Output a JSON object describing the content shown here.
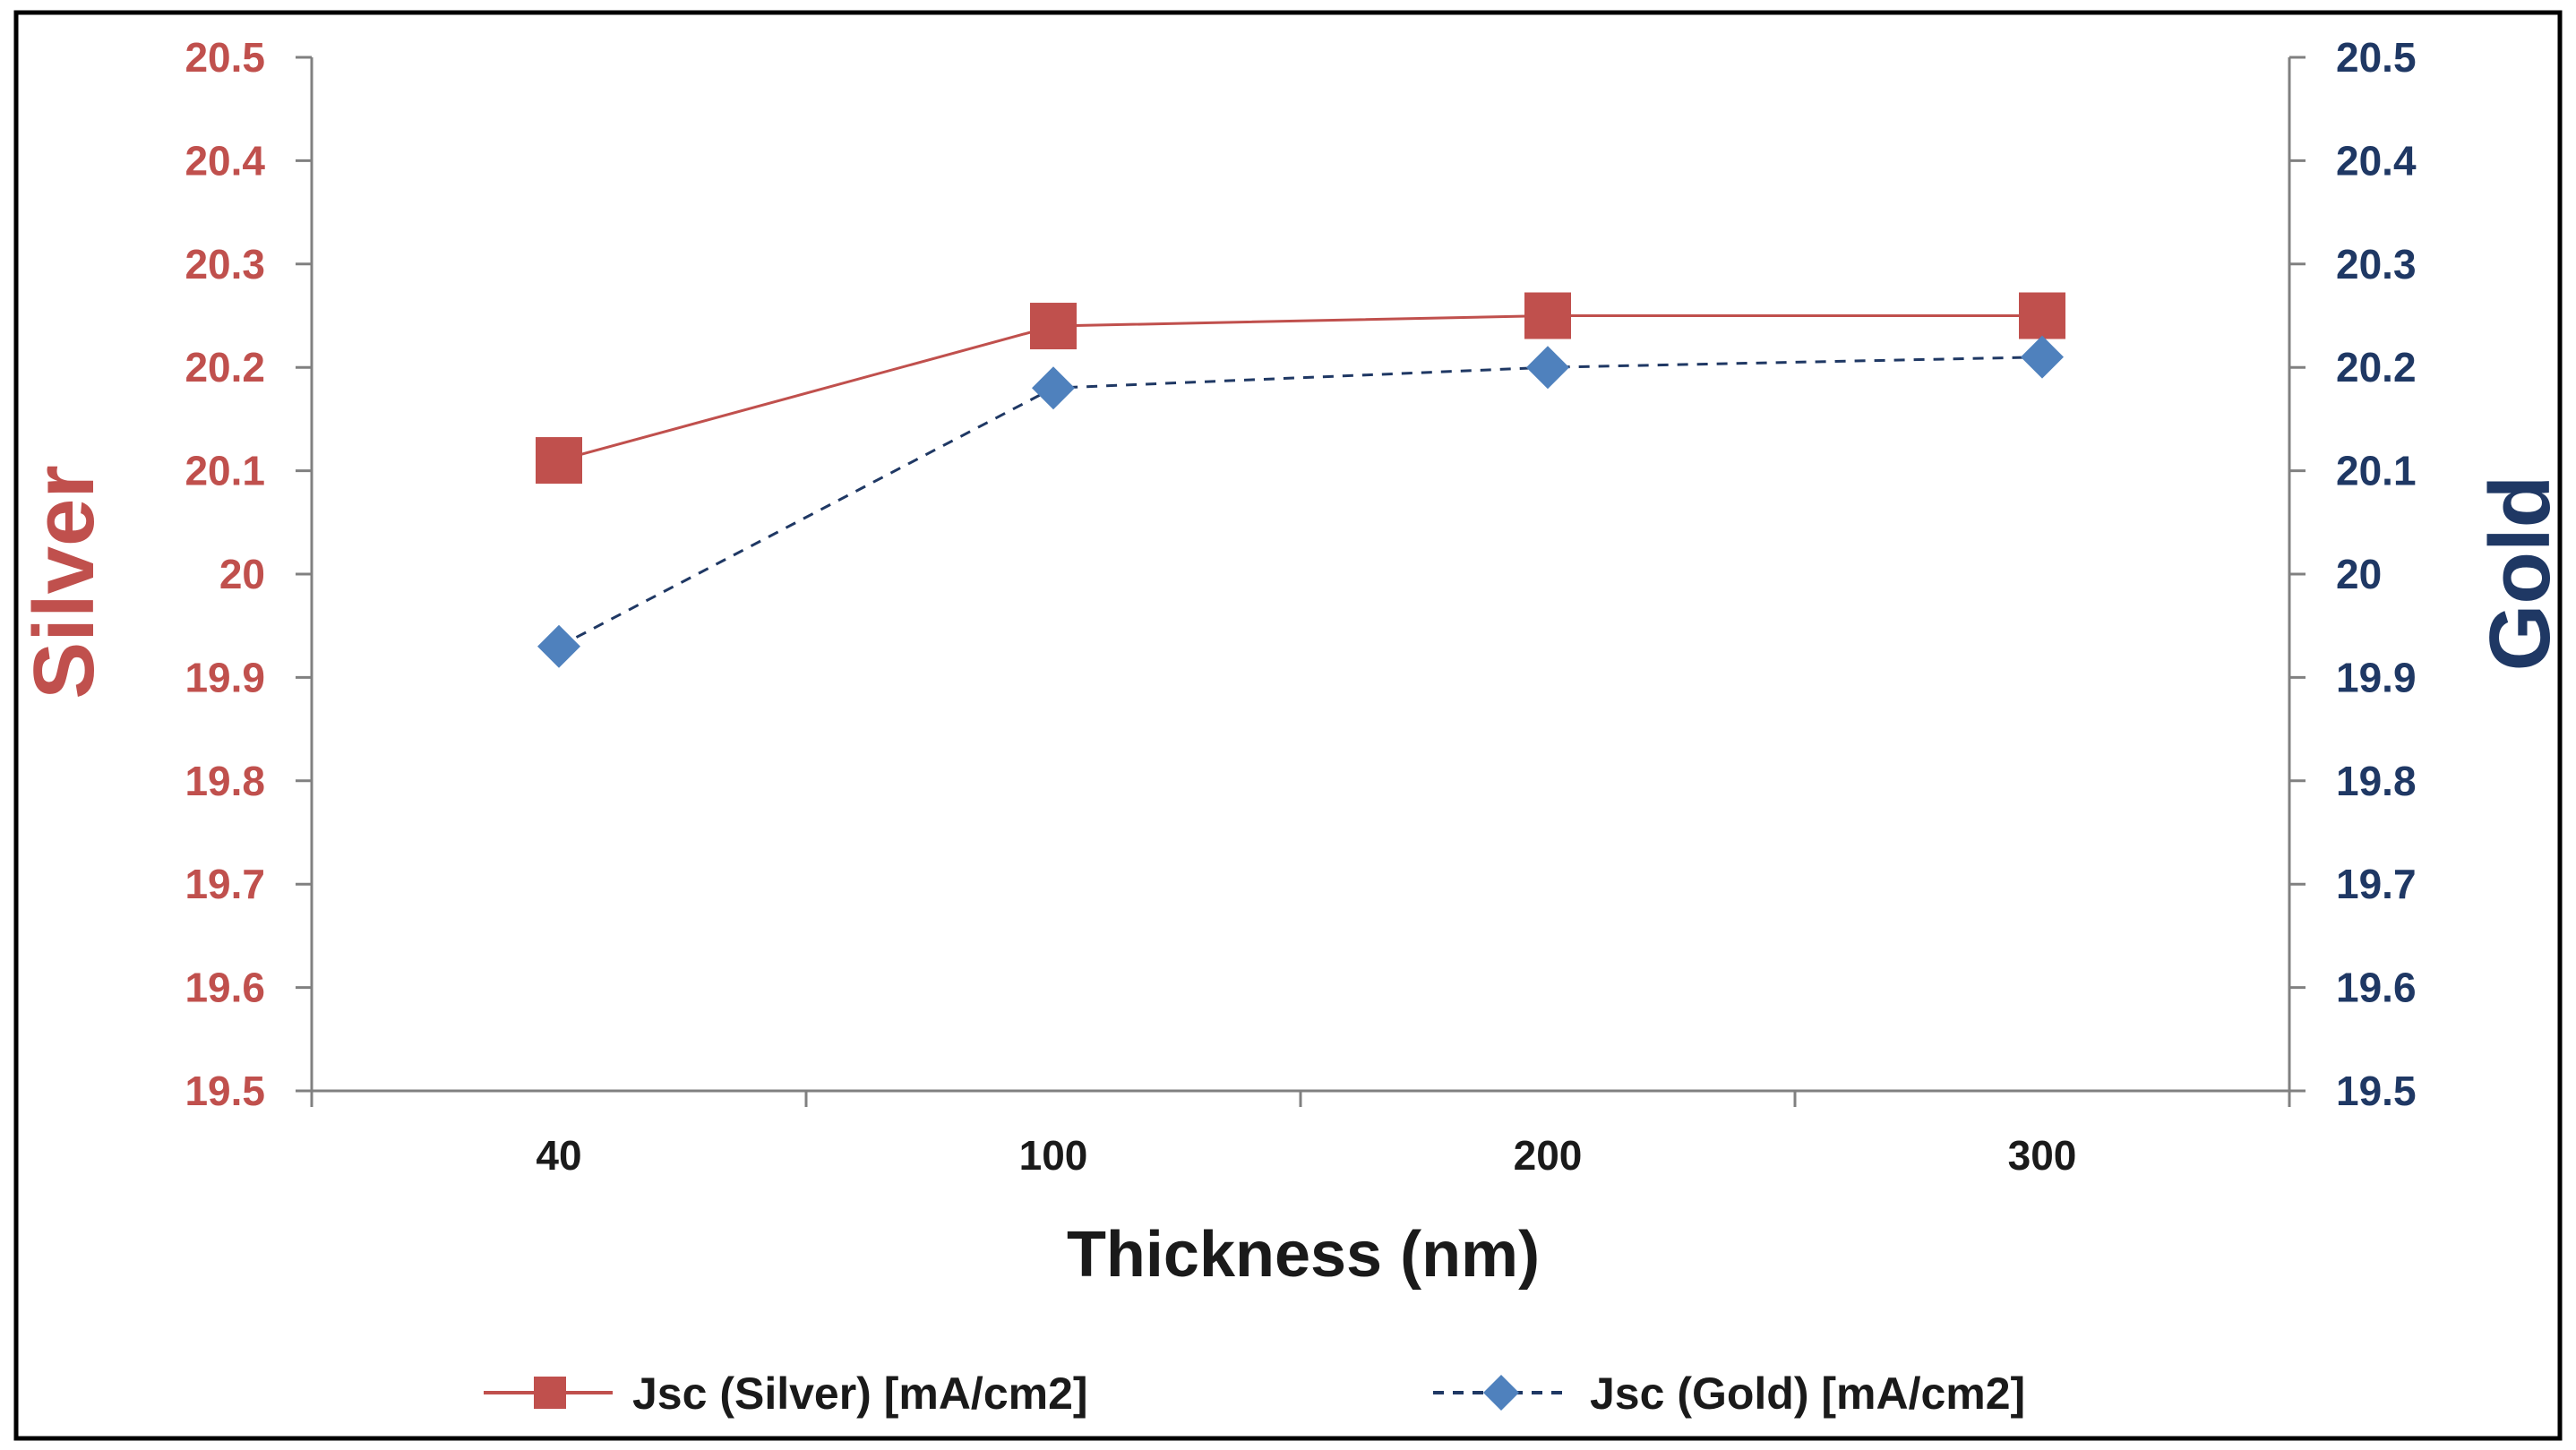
{
  "chart_data": {
    "type": "line",
    "categories": [
      "40",
      "100",
      "200",
      "300"
    ],
    "xlabel": "Thickness (nm)",
    "ylabel_left": "Silver",
    "ylabel_right": "Gold",
    "ylim_left": [
      19.5,
      20.5
    ],
    "ylim_right": [
      19.5,
      20.5
    ],
    "yticks_left": [
      "20.5",
      "20.4",
      "20.3",
      "20.2",
      "20.1",
      "20",
      "19.9",
      "19.8",
      "19.7",
      "19.6",
      "19.5"
    ],
    "yticks_right": [
      "20.5",
      "20.4",
      "20.3",
      "20.2",
      "20.1",
      "20",
      "19.9",
      "19.8",
      "19.7",
      "19.6",
      "19.5"
    ],
    "grid": false,
    "legend_position": "bottom",
    "series": [
      {
        "name": "Jsc (Silver) [mA/cm2]",
        "values": [
          20.11,
          20.24,
          20.25,
          20.25
        ],
        "axis": "left",
        "color": "#c0504d",
        "marker": "square",
        "line_style": "solid"
      },
      {
        "name": "Jsc (Gold) [mA/cm2]",
        "values": [
          19.93,
          20.18,
          20.2,
          20.21
        ],
        "axis": "right",
        "color": "#4f81bd",
        "line_color": "#1f3864",
        "marker": "diamond",
        "line_style": "dashed"
      }
    ]
  },
  "colors": {
    "silver_text": "#c0504d",
    "gold_text": "#1f3864",
    "axis": "#808080",
    "frame": "#000000"
  }
}
